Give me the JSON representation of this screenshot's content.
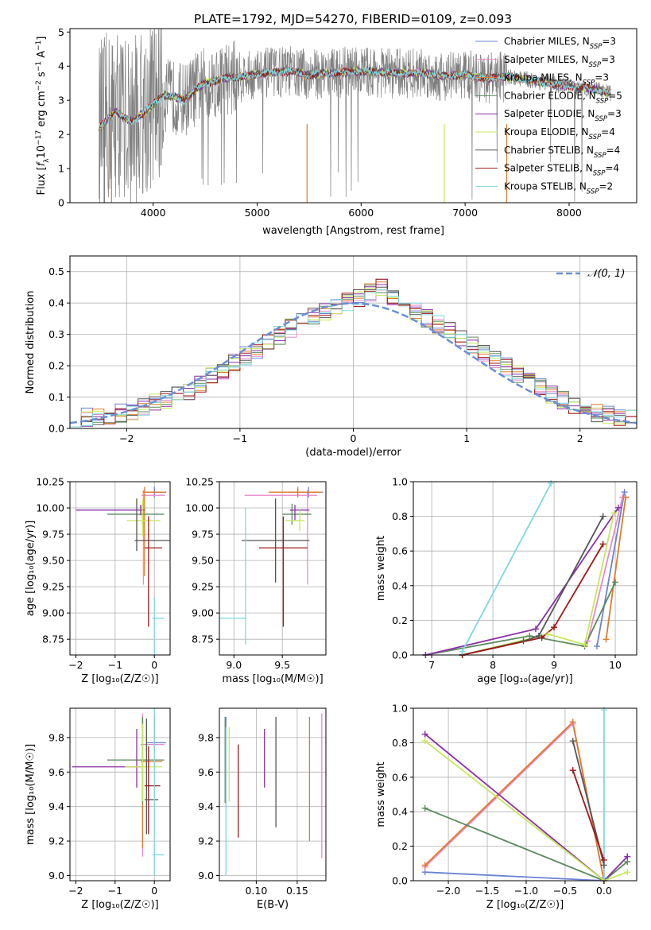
{
  "title": "PLATE=1792, MJD=54270, FIBERID=0109, z=0.093",
  "colors": {
    "Chabrier MILES": "#6b83d6",
    "Salpeter MILES": "#e88acb",
    "Kroupa MILES": "#e07b2a",
    "Chabrier ELODIE": "#5b8a5e",
    "Salpeter ELODIE": "#8b2fa8",
    "Kroupa ELODIE": "#c8e85a",
    "Chabrier STELIB": "#555555",
    "Salpeter STELIB": "#a01818",
    "Kroupa STELIB": "#7fd8df",
    "data": "#808080",
    "normal": "#6b8fd6"
  },
  "panels": {
    "spectrum": {
      "xlabel": "wavelength [Angstrom, rest frame]",
      "ylabel_parts": [
        "Flux [",
        "f",
        "λ",
        "10",
        "−17",
        " erg cm",
        "−2",
        " s",
        "−1",
        " A",
        "−1",
        "]"
      ]
    },
    "residual": {
      "xlabel": "(data-model)/error",
      "ylabel": "Normed distribution",
      "legend": "𝒩(0, 1)"
    },
    "age_Z": {
      "xlabel": "Z [log₁₀(Z/Z☉)]",
      "ylabel": "age  [log₁₀(age/yr)]"
    },
    "age_mass": {
      "xlabel": "mass [log₁₀(M/M☉)]"
    },
    "weight_age": {
      "xlabel": "age  [log₁₀(age/yr)]",
      "ylabel": "mass weight"
    },
    "mass_Z": {
      "xlabel": "Z [log₁₀(Z/Z☉)]",
      "ylabel": "mass [log₁₀(M/M☉)]"
    },
    "mass_ebv": {
      "xlabel": "E(B-V)"
    },
    "weight_Z": {
      "xlabel": "Z [log₁₀(Z/Z☉)]",
      "ylabel": "mass weight"
    }
  },
  "chart_data": [
    {
      "id": "spectrum",
      "type": "line",
      "xlim": [
        3200,
        8650
      ],
      "ylim": [
        0,
        5.1
      ],
      "xticks": [
        4000,
        5000,
        6000,
        7000,
        8000
      ],
      "yticks": [
        0,
        1,
        2,
        3,
        4,
        5
      ],
      "legend_loc": "right",
      "legend": [
        {
          "imf": "Chabrier",
          "lib": "MILES",
          "nssp": 3
        },
        {
          "imf": "Salpeter",
          "lib": "MILES",
          "nssp": 3
        },
        {
          "imf": "Kroupa",
          "lib": "MILES",
          "nssp": 3
        },
        {
          "imf": "Chabrier",
          "lib": "ELODIE",
          "nssp": 5
        },
        {
          "imf": "Salpeter",
          "lib": "ELODIE",
          "nssp": 3
        },
        {
          "imf": "Kroupa",
          "lib": "ELODIE",
          "nssp": 4
        },
        {
          "imf": "Chabrier",
          "lib": "STELIB",
          "nssp": 4
        },
        {
          "imf": "Salpeter",
          "lib": "STELIB",
          "nssp": 4
        },
        {
          "imf": "Kroupa",
          "lib": "STELIB",
          "nssp": 2
        }
      ],
      "model_continuum": {
        "x": [
          3480,
          3550,
          3650,
          3700,
          3800,
          3900,
          4000,
          4100,
          4200,
          4300,
          4400,
          4500,
          4700,
          4900,
          5100,
          5300,
          5500,
          5700,
          6000,
          6300,
          6600,
          6800,
          7000,
          7200,
          7400,
          7600,
          7800,
          8000,
          8200,
          8400
        ],
        "y": [
          2.2,
          2.4,
          2.7,
          2.5,
          2.4,
          2.6,
          2.9,
          3.15,
          3.1,
          3.0,
          3.3,
          3.5,
          3.65,
          3.7,
          3.8,
          3.85,
          3.75,
          3.8,
          3.85,
          3.8,
          3.8,
          3.7,
          3.75,
          3.65,
          3.7,
          3.6,
          3.5,
          3.4,
          3.35,
          3.2
        ]
      }
    },
    {
      "id": "residual",
      "type": "histogram",
      "xlim": [
        -2.5,
        2.5
      ],
      "ylim": [
        0,
        0.55
      ],
      "xticks": [
        -2,
        -1,
        0,
        1,
        2
      ],
      "yticks": [
        0.0,
        0.1,
        0.2,
        0.3,
        0.4,
        0.5
      ],
      "bin_width": 0.1,
      "legend_loc": "top-right",
      "envelope_x": [
        -2.5,
        -2.0,
        -1.5,
        -1.0,
        -0.5,
        0.0,
        0.25,
        0.5,
        1.0,
        1.5,
        2.0,
        2.5
      ],
      "envelope_y": [
        0.03,
        0.05,
        0.11,
        0.22,
        0.33,
        0.41,
        0.45,
        0.38,
        0.28,
        0.16,
        0.06,
        0.03
      ]
    },
    {
      "id": "age_Z",
      "type": "errorbar",
      "xlim": [
        -2.15,
        0.4
      ],
      "ylim": [
        8.6,
        10.25
      ],
      "xticks": [
        -2,
        -1,
        0
      ],
      "yticks": [
        8.75,
        9.0,
        9.25,
        9.5,
        9.75,
        10.0,
        10.25
      ],
      "points": [
        {
          "model": "Chabrier MILES",
          "x": 0.0,
          "xerr": [
            0.2,
            0.3
          ],
          "y": 10.15,
          "yerr": [
            0.05,
            0.05
          ]
        },
        {
          "model": "Salpeter MILES",
          "x": -0.28,
          "xerr": [
            0.05,
            0.55
          ],
          "y": 10.12,
          "yerr": [
            0.85,
            0.05
          ]
        },
        {
          "model": "Kroupa MILES",
          "x": -0.25,
          "xerr": [
            0.05,
            0.55
          ],
          "y": 10.15,
          "yerr": [
            0.8,
            0.05
          ]
        },
        {
          "model": "Chabrier ELODIE",
          "x": -0.3,
          "xerr": [
            0.9,
            0.55
          ],
          "y": 9.94,
          "yerr": [
            0.1,
            0.1
          ]
        },
        {
          "model": "Salpeter ELODIE",
          "x": -0.35,
          "xerr": [
            1.65,
            0.1
          ],
          "y": 9.98,
          "yerr": [
            0.05,
            0.05
          ]
        },
        {
          "model": "Kroupa ELODIE",
          "x": -0.3,
          "xerr": [
            0.4,
            0.45
          ],
          "y": 9.88,
          "yerr": [
            0.15,
            0.2
          ]
        },
        {
          "model": "Chabrier STELIB",
          "x": -0.45,
          "xerr": [
            0.05,
            0.9
          ],
          "y": 9.69,
          "yerr": [
            0.1,
            0.4
          ]
        },
        {
          "model": "Salpeter STELIB",
          "x": -0.15,
          "xerr": [
            0.1,
            0.35
          ],
          "y": 9.62,
          "yerr": [
            0.75,
            0.3
          ]
        },
        {
          "model": "Kroupa STELIB",
          "x": 0.0,
          "xerr": [
            0.05,
            0.25
          ],
          "y": 8.95,
          "yerr": [
            0.5,
            0.2
          ]
        }
      ]
    },
    {
      "id": "age_mass",
      "type": "errorbar",
      "xlim": [
        8.85,
        9.95
      ],
      "ylim": [
        8.6,
        10.25
      ],
      "xticks": [
        9.0,
        9.5
      ],
      "yticks": [
        8.75,
        9.0,
        9.25,
        9.5,
        9.75,
        10.0,
        10.25
      ],
      "points": [
        {
          "model": "Chabrier MILES",
          "x": 9.77,
          "xerr": [
            0.2,
            0.15
          ],
          "y": 10.15,
          "yerr": [
            0.05,
            0.05
          ]
        },
        {
          "model": "Salpeter MILES",
          "x": 9.76,
          "xerr": [
            0.65,
            0.1
          ],
          "y": 10.12,
          "yerr": [
            0.85,
            0.05
          ]
        },
        {
          "model": "Kroupa MILES",
          "x": 9.66,
          "xerr": [
            0.3,
            0.25
          ],
          "y": 10.15,
          "yerr": [
            0.05,
            0.05
          ]
        },
        {
          "model": "Chabrier ELODIE",
          "x": 9.6,
          "xerr": [
            0.1,
            0.2
          ],
          "y": 9.94,
          "yerr": [
            0.1,
            0.1
          ]
        },
        {
          "model": "Salpeter ELODIE",
          "x": 9.63,
          "xerr": [
            0.05,
            0.15
          ],
          "y": 9.98,
          "yerr": [
            0.1,
            0.05
          ]
        },
        {
          "model": "Kroupa ELODIE",
          "x": 9.68,
          "xerr": [
            0.15,
            0.05
          ],
          "y": 9.88,
          "yerr": [
            0.1,
            0.1
          ]
        },
        {
          "model": "Chabrier STELIB",
          "x": 9.43,
          "xerr": [
            0.35,
            0.35
          ],
          "y": 9.69,
          "yerr": [
            0.4,
            0.4
          ]
        },
        {
          "model": "Salpeter STELIB",
          "x": 9.51,
          "xerr": [
            0.25,
            0.25
          ],
          "y": 9.62,
          "yerr": [
            0.75,
            0.3
          ]
        },
        {
          "model": "Kroupa STELIB",
          "x": 9.12,
          "xerr": [
            0.5,
            0.0
          ],
          "y": 8.95,
          "yerr": [
            0.25,
            1.05
          ]
        }
      ]
    },
    {
      "id": "weight_age",
      "type": "line",
      "xlim": [
        6.7,
        10.35
      ],
      "ylim": [
        0,
        1.0
      ],
      "xticks": [
        7,
        8,
        9,
        10
      ],
      "yticks": [
        0.0,
        0.2,
        0.4,
        0.6,
        0.8,
        1.0
      ],
      "series": [
        {
          "model": "Chabrier MILES",
          "x": [
            9.7,
            10.15
          ],
          "y": [
            0.05,
            0.94
          ]
        },
        {
          "model": "Salpeter MILES",
          "x": [
            9.55,
            10.12
          ],
          "y": [
            0.08,
            0.91
          ]
        },
        {
          "model": "Kroupa MILES",
          "x": [
            9.85,
            10.17
          ],
          "y": [
            0.09,
            0.91
          ]
        },
        {
          "model": "Chabrier ELODIE",
          "x": [
            6.9,
            8.6,
            9.5,
            10.0
          ],
          "y": [
            0.0,
            0.11,
            0.05,
            0.42
          ]
        },
        {
          "model": "Salpeter ELODIE",
          "x": [
            6.9,
            8.7,
            10.05
          ],
          "y": [
            0.0,
            0.15,
            0.85
          ]
        },
        {
          "model": "Kroupa ELODIE",
          "x": [
            7.5,
            8.9,
            9.5,
            9.98
          ],
          "y": [
            0.0,
            0.12,
            0.06,
            0.82
          ]
        },
        {
          "model": "Chabrier STELIB",
          "x": [
            7.5,
            8.5,
            8.75,
            9.8
          ],
          "y": [
            0.0,
            0.08,
            0.11,
            0.8
          ]
        },
        {
          "model": "Salpeter STELIB",
          "x": [
            7.5,
            8.8,
            9.0,
            9.8
          ],
          "y": [
            0.0,
            0.1,
            0.16,
            0.64
          ]
        },
        {
          "model": "Kroupa STELIB",
          "x": [
            7.5,
            8.95
          ],
          "y": [
            0.02,
            0.99
          ]
        }
      ]
    },
    {
      "id": "mass_Z",
      "type": "errorbar",
      "xlim": [
        -2.15,
        0.4
      ],
      "ylim": [
        8.97,
        9.97
      ],
      "xticks": [
        -2,
        -1,
        0
      ],
      "yticks": [
        9.0,
        9.2,
        9.4,
        9.6,
        9.8
      ],
      "points": [
        {
          "model": "Chabrier MILES",
          "x": 0.0,
          "xerr": [
            0.2,
            0.3
          ],
          "y": 9.77,
          "yerr": [
            0.05,
            0.15
          ]
        },
        {
          "model": "Salpeter MILES",
          "x": -0.3,
          "xerr": [
            0.05,
            0.55
          ],
          "y": 9.76,
          "yerr": [
            0.65,
            0.18
          ]
        },
        {
          "model": "Kroupa MILES",
          "x": -0.3,
          "xerr": [
            0.05,
            0.5
          ],
          "y": 9.66,
          "yerr": [
            0.5,
            0.25
          ]
        },
        {
          "model": "Chabrier ELODIE",
          "x": -0.3,
          "xerr": [
            0.9,
            0.55
          ],
          "y": 9.67,
          "yerr": [
            0.25,
            0.25
          ]
        },
        {
          "model": "Salpeter ELODIE",
          "x": -0.45,
          "xerr": [
            1.65,
            0.1
          ],
          "y": 9.63,
          "yerr": [
            0.12,
            0.22
          ]
        },
        {
          "model": "Kroupa ELODIE",
          "x": -0.3,
          "xerr": [
            0.45,
            0.5
          ],
          "y": 9.63,
          "yerr": [
            0.2,
            0.25
          ]
        },
        {
          "model": "Chabrier STELIB",
          "x": -0.2,
          "xerr": [
            0.05,
            0.3
          ],
          "y": 9.44,
          "yerr": [
            0.2,
            0.47
          ]
        },
        {
          "model": "Salpeter STELIB",
          "x": -0.15,
          "xerr": [
            0.1,
            0.3
          ],
          "y": 9.52,
          "yerr": [
            0.28,
            0.23
          ]
        },
        {
          "model": "Kroupa STELIB",
          "x": 0.0,
          "xerr": [
            0.05,
            0.25
          ],
          "y": 9.12,
          "yerr": [
            0.12,
            0.85
          ]
        }
      ]
    },
    {
      "id": "mass_ebv",
      "type": "errorbar",
      "xlim": [
        0.055,
        0.185
      ],
      "ylim": [
        8.97,
        9.97
      ],
      "xticks": [
        0.1,
        0.15
      ],
      "yticks": [
        9.0,
        9.2,
        9.4,
        9.6,
        9.8
      ],
      "points": [
        {
          "model": "Chabrier MILES",
          "x": 0.063,
          "xerr": [
            0,
            0
          ],
          "y": 9.67,
          "yerr": [
            0.25,
            0.25
          ]
        },
        {
          "model": "Salpeter MILES",
          "x": 0.18,
          "xerr": [
            0,
            0
          ],
          "y": 9.5,
          "yerr": [
            0.4,
            0.44
          ]
        },
        {
          "model": "Kroupa MILES",
          "x": 0.165,
          "xerr": [
            0,
            0
          ],
          "y": 9.55,
          "yerr": [
            0.35,
            0.37
          ]
        },
        {
          "model": "Chabrier ELODIE",
          "x": 0.062,
          "xerr": [
            0,
            0
          ],
          "y": 9.67,
          "yerr": [
            0.25,
            0.25
          ]
        },
        {
          "model": "Salpeter ELODIE",
          "x": 0.11,
          "xerr": [
            0,
            0
          ],
          "y": 9.63,
          "yerr": [
            0.12,
            0.22
          ]
        },
        {
          "model": "Kroupa ELODIE",
          "x": 0.067,
          "xerr": [
            0,
            0
          ],
          "y": 9.63,
          "yerr": [
            0.2,
            0.23
          ]
        },
        {
          "model": "Chabrier STELIB",
          "x": 0.124,
          "xerr": [
            0,
            0
          ],
          "y": 9.6,
          "yerr": [
            0.32,
            0.32
          ]
        },
        {
          "model": "Salpeter STELIB",
          "x": 0.078,
          "xerr": [
            0,
            0
          ],
          "y": 9.49,
          "yerr": [
            0.27,
            0.27
          ]
        },
        {
          "model": "Kroupa STELIB",
          "x": 0.063,
          "xerr": [
            0,
            0
          ],
          "y": 9.43,
          "yerr": [
            0.43,
            0.43
          ]
        }
      ]
    },
    {
      "id": "weight_Z",
      "type": "line",
      "xlim": [
        -2.45,
        0.42
      ],
      "ylim": [
        0,
        1.0
      ],
      "xticks": [
        -2.0,
        -1.5,
        -1.0,
        -0.5,
        0.0
      ],
      "yticks": [
        0.0,
        0.2,
        0.4,
        0.6,
        0.8,
        1.0
      ],
      "series": [
        {
          "model": "Chabrier MILES",
          "x": [
            -2.3,
            0.0
          ],
          "y": [
            0.05,
            0.0
          ]
        },
        {
          "model": "Salpeter MILES",
          "x": [
            -2.3,
            -0.4,
            0.0
          ],
          "y": [
            0.08,
            0.91,
            0.0
          ]
        },
        {
          "model": "Kroupa MILES",
          "x": [
            -2.3,
            -0.4,
            0.0
          ],
          "y": [
            0.09,
            0.92,
            0.0
          ]
        },
        {
          "model": "Chabrier ELODIE",
          "x": [
            -2.3,
            0.0,
            0.3
          ],
          "y": [
            0.42,
            0.0,
            0.11
          ]
        },
        {
          "model": "Salpeter ELODIE",
          "x": [
            -2.3,
            0.0,
            0.3
          ],
          "y": [
            0.85,
            0.0,
            0.14
          ]
        },
        {
          "model": "Kroupa ELODIE",
          "x": [
            -2.3,
            0.0,
            0.3
          ],
          "y": [
            0.81,
            0.0,
            0.05
          ]
        },
        {
          "model": "Chabrier STELIB",
          "x": [
            -0.4,
            0.0
          ],
          "y": [
            0.81,
            0.09
          ]
        },
        {
          "model": "Salpeter STELIB",
          "x": [
            -0.4,
            0.0
          ],
          "y": [
            0.64,
            0.12
          ]
        },
        {
          "model": "Kroupa STELIB",
          "x": [
            0.0,
            0.0
          ],
          "y": [
            0.02,
            0.99
          ]
        }
      ]
    }
  ]
}
